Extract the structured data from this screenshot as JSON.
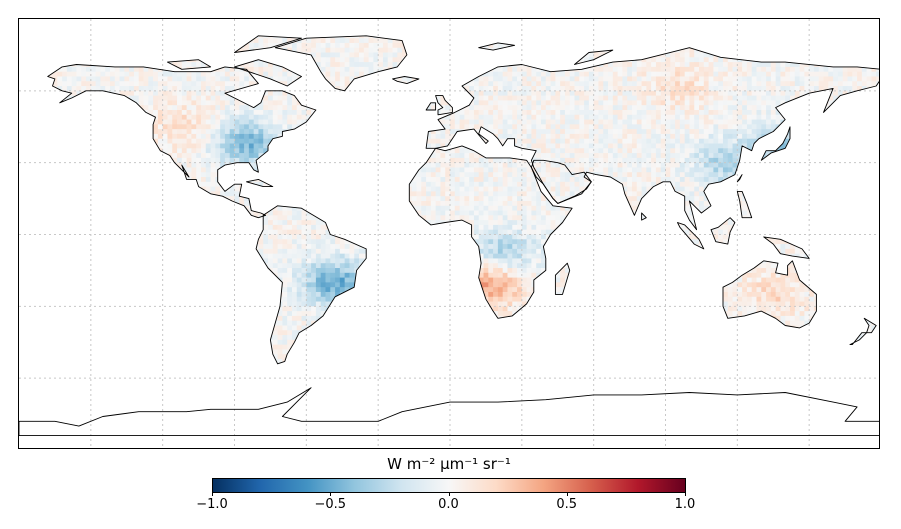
{
  "map": {
    "projection": "plate-carree",
    "extent": {
      "lon": [
        -180,
        180
      ],
      "lat": [
        -90,
        90
      ]
    },
    "gridlines": {
      "lon_step": 30,
      "lat_step": 30,
      "style": "dotted",
      "color": "#c8c8c8"
    },
    "coastline_color": "#000000",
    "cell_size_deg": 2,
    "hotspots": [
      {
        "region": "eastern-north-america",
        "lon": -85,
        "lat": 38,
        "value": -0.45
      },
      {
        "region": "southeast-brazil",
        "lon": -48,
        "lat": -20,
        "value": -0.5
      },
      {
        "region": "central-africa",
        "lon": 22,
        "lat": -8,
        "value": -0.35
      },
      {
        "region": "namibia",
        "lon": 17,
        "lat": -20,
        "value": 0.45
      },
      {
        "region": "east-china",
        "lon": 115,
        "lat": 30,
        "value": -0.3
      },
      {
        "region": "japan",
        "lon": 139,
        "lat": 37,
        "value": -0.35
      },
      {
        "region": "siberia",
        "lon": 95,
        "lat": 62,
        "value": 0.15
      },
      {
        "region": "australia",
        "lon": 135,
        "lat": -25,
        "value": 0.18
      },
      {
        "region": "western-north-america",
        "lon": -112,
        "lat": 45,
        "value": 0.15
      }
    ]
  },
  "colorbar": {
    "title": "W m⁻² µm⁻¹ sr⁻¹",
    "min": -1.0,
    "max": 1.0,
    "colormap": "RdBu_r",
    "ticks": [
      {
        "value": -1.0,
        "label": "−1.0"
      },
      {
        "value": -0.5,
        "label": "−0.5"
      },
      {
        "value": 0.0,
        "label": "0.0"
      },
      {
        "value": 0.5,
        "label": "0.5"
      },
      {
        "value": 1.0,
        "label": "1.0"
      }
    ],
    "stops": [
      "#053061",
      "#2166ac",
      "#4393c3",
      "#92c5de",
      "#d1e5f0",
      "#f7f7f7",
      "#fddbc7",
      "#f4a582",
      "#d6604d",
      "#b2182b",
      "#67001f"
    ]
  }
}
